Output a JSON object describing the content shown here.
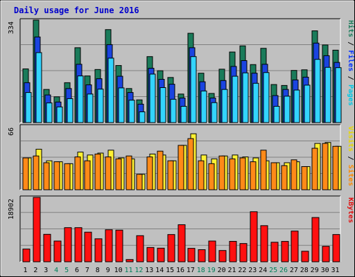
{
  "chart_data": [
    {
      "type": "bar",
      "title": "Daily usage for June 2016",
      "categories": [
        "1",
        "2",
        "3",
        "4",
        "5",
        "6",
        "7",
        "8",
        "9",
        "10",
        "11",
        "12",
        "13",
        "14",
        "15",
        "16",
        "17",
        "18",
        "19",
        "20",
        "21",
        "22",
        "23",
        "24",
        "25",
        "26",
        "27",
        "28",
        "29",
        "30",
        "31"
      ],
      "weekend_days": [
        "4",
        "5",
        "11",
        "12",
        "18",
        "19",
        "25",
        "26"
      ],
      "ymax_label": "334",
      "ylim": [
        0,
        334
      ],
      "grid": true,
      "legend": [
        "Pages",
        "Files",
        "Hits"
      ],
      "series": [
        {
          "name": "Hits",
          "color": "#1A7B5A",
          "values": [
            175,
            334,
            108,
            84,
            130,
            244,
            152,
            173,
            303,
            186,
            111,
            74,
            215,
            169,
            147,
            93,
            291,
            161,
            95,
            174,
            230,
            250,
            189,
            242,
            124,
            121,
            170,
            172,
            299,
            253,
            236
          ]
        },
        {
          "name": "Files",
          "color": "#1A44E0",
          "values": [
            130,
            279,
            90,
            67,
            111,
            190,
            123,
            143,
            254,
            151,
            98,
            60,
            177,
            141,
            125,
            80,
            244,
            133,
            80,
            137,
            183,
            202,
            161,
            190,
            88,
            108,
            139,
            148,
            259,
            218,
            196
          ]
        },
        {
          "name": "Pages",
          "color": "#33D4FF",
          "values": [
            98,
            228,
            64,
            51,
            78,
            152,
            93,
            109,
            210,
            113,
            73,
            35,
            158,
            114,
            76,
            53,
            215,
            103,
            65,
            108,
            151,
            162,
            128,
            163,
            53,
            86,
            106,
            122,
            206,
            180,
            179
          ]
        }
      ]
    },
    {
      "type": "bar",
      "categories": [
        "1",
        "2",
        "3",
        "4",
        "5",
        "6",
        "7",
        "8",
        "9",
        "10",
        "11",
        "12",
        "13",
        "14",
        "15",
        "16",
        "17",
        "18",
        "19",
        "20",
        "21",
        "22",
        "23",
        "24",
        "25",
        "26",
        "27",
        "28",
        "29",
        "30",
        "31"
      ],
      "ymax_label": "66",
      "ylim": [
        0,
        66
      ],
      "grid": true,
      "legend": [
        "Sites",
        "Visits"
      ],
      "series": [
        {
          "name": "Visits",
          "color": "#FFF133",
          "values": [
            33,
            42,
            30,
            29,
            27,
            39,
            36,
            38,
            41,
            33,
            32,
            16,
            37,
            36,
            30,
            46,
            58,
            36,
            32,
            35,
            36,
            34,
            33,
            30,
            28,
            28,
            29,
            24,
            48,
            49,
            45
          ]
        },
        {
          "name": "Sites",
          "color": "#FF8A18",
          "values": [
            33,
            35,
            28,
            29,
            27,
            34,
            30,
            37,
            34,
            32,
            35,
            16,
            34,
            40,
            30,
            46,
            53,
            30,
            27,
            35,
            32,
            33,
            29,
            41,
            28,
            25,
            31,
            24,
            43,
            48,
            45
          ]
        }
      ]
    },
    {
      "type": "bar",
      "categories": [
        "1",
        "2",
        "3",
        "4",
        "5",
        "6",
        "7",
        "8",
        "9",
        "10",
        "11",
        "12",
        "13",
        "14",
        "15",
        "16",
        "17",
        "18",
        "19",
        "20",
        "21",
        "22",
        "23",
        "24",
        "25",
        "26",
        "27",
        "28",
        "29",
        "30",
        "31"
      ],
      "ymax_label": "18902",
      "ylim": [
        0,
        18902
      ],
      "grid": true,
      "legend": [
        "KBytes"
      ],
      "series": [
        {
          "name": "KBytes",
          "color": "#FF1010",
          "values": [
            3734,
            18902,
            8061,
            6089,
            10019,
            10019,
            8692,
            6749,
            9398,
            9287,
            657,
            7665,
            4191,
            3997,
            7996,
            10880,
            3942,
            3550,
            6089,
            3308,
            5998,
            5357,
            14690,
            10605,
            5732,
            5979,
            9015,
            3090,
            12989,
            4540,
            8000
          ]
        }
      ]
    }
  ]
}
